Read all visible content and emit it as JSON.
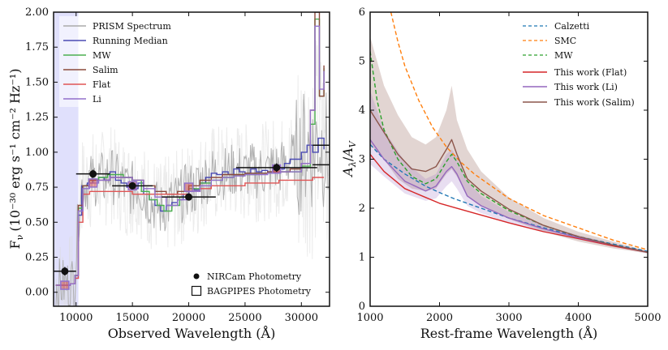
{
  "chart_data": [
    {
      "type": "line",
      "title": "",
      "xlabel": "Observed Wavelength (Å)",
      "ylabel": "F_ν (10⁻³⁰ erg s⁻¹ cm⁻² Hz⁻¹)",
      "ylabel_main": "F",
      "ylabel_sub": "ν",
      "ylabel_units": "(10⁻³⁰ erg s⁻¹ cm⁻² Hz⁻¹)",
      "xlim": [
        8000,
        32500
      ],
      "ylim": [
        -0.1,
        2.0
      ],
      "xticks": [
        10000,
        15000,
        20000,
        25000,
        30000
      ],
      "xtick_labels": [
        "10000",
        "15000",
        "20000",
        "25000",
        "30000"
      ],
      "yticks": [
        0.0,
        0.25,
        0.5,
        0.75,
        1.0,
        1.25,
        1.5,
        1.75,
        2.0
      ],
      "ytick_labels": [
        "0.00",
        "0.25",
        "0.50",
        "0.75",
        "1.00",
        "1.25",
        "1.50",
        "1.75",
        "2.00"
      ],
      "shaded_region": {
        "x": [
          8000,
          10200
        ],
        "color": "#d8d8fb"
      },
      "legend": {
        "placement": "top-left",
        "entries": [
          {
            "label": "PRISM Spectrum",
            "color": "#aaaaaa"
          },
          {
            "label": "Running Median",
            "color": "#4b4bb4"
          },
          {
            "label": "MW",
            "color": "#4caf50"
          },
          {
            "label": "Salim",
            "color": "#8b4a3c"
          },
          {
            "label": "Flat",
            "color": "#e05555"
          },
          {
            "label": "Li",
            "color": "#9370cc"
          }
        ]
      },
      "legend2": {
        "placement": "bottom-right",
        "entries": [
          {
            "label": "NIRCam Photometry",
            "marker": "circle"
          },
          {
            "label": "BAGPIPES Photometry",
            "marker": "square"
          }
        ]
      },
      "series": [
        {
          "name": "Running Median",
          "color": "#4b4bb4",
          "x": [
            8200,
            9000,
            9500,
            9900,
            10200,
            10500,
            11000,
            11500,
            12000,
            12500,
            13000,
            13500,
            14000,
            14500,
            15000,
            15500,
            16000,
            16500,
            17000,
            17500,
            18000,
            18500,
            19000,
            19500,
            20000,
            20500,
            21000,
            21500,
            22000,
            22500,
            23000,
            23500,
            24000,
            24500,
            25000,
            25500,
            26000,
            26500,
            27000,
            27500,
            28000,
            28500,
            29000,
            29500,
            30000,
            30500,
            31000,
            31500,
            32000
          ],
          "y": [
            0.05,
            0.05,
            0.06,
            0.1,
            0.55,
            0.76,
            0.78,
            0.8,
            0.82,
            0.8,
            0.86,
            0.8,
            0.78,
            0.75,
            0.74,
            0.78,
            0.7,
            0.66,
            0.62,
            0.58,
            0.62,
            0.64,
            0.66,
            0.7,
            0.74,
            0.73,
            0.78,
            0.82,
            0.85,
            0.84,
            0.86,
            0.84,
            0.88,
            0.86,
            0.85,
            0.88,
            0.86,
            0.87,
            0.86,
            0.9,
            0.88,
            0.92,
            0.95,
            0.95,
            1.0,
            1.05,
            1.0,
            1.1,
            1.02
          ]
        },
        {
          "name": "MW",
          "color": "#4caf50",
          "x": [
            8200,
            9000,
            9500,
            9900,
            10200,
            10600,
            11200,
            12000,
            12800,
            13500,
            14200,
            15000,
            15800,
            16500,
            17200,
            17800,
            18500,
            19200,
            20000,
            21000,
            22000,
            23000,
            24000,
            25000,
            26000,
            27000,
            28000,
            29000,
            30000,
            30800,
            31200,
            31600,
            32000
          ],
          "y": [
            0.05,
            0.05,
            0.06,
            0.12,
            0.6,
            0.76,
            0.8,
            0.82,
            0.84,
            0.84,
            0.82,
            0.8,
            0.72,
            0.66,
            0.62,
            0.58,
            0.62,
            0.68,
            0.74,
            0.78,
            0.8,
            0.82,
            0.84,
            0.84,
            0.85,
            0.85,
            0.86,
            0.86,
            0.9,
            1.2,
            1.95,
            1.4,
            1.6
          ]
        },
        {
          "name": "Salim",
          "color": "#8b4a3c",
          "x": [
            8200,
            9000,
            9500,
            9900,
            10200,
            10600,
            11200,
            12000,
            13000,
            14000,
            15000,
            16000,
            17000,
            18000,
            19000,
            20000,
            21000,
            22000,
            23000,
            24000,
            25000,
            26000,
            27000,
            28000,
            29000,
            30000,
            30800,
            31200,
            31600,
            32000
          ],
          "y": [
            0.05,
            0.05,
            0.06,
            0.12,
            0.62,
            0.76,
            0.8,
            0.8,
            0.82,
            0.82,
            0.8,
            0.76,
            0.72,
            0.7,
            0.72,
            0.76,
            0.8,
            0.82,
            0.84,
            0.84,
            0.85,
            0.85,
            0.86,
            0.86,
            0.88,
            0.92,
            1.3,
            2.0,
            1.4,
            1.62
          ]
        },
        {
          "name": "Flat",
          "color": "#e05555",
          "x": [
            8200,
            9000,
            9500,
            9900,
            10200,
            10600,
            11200,
            12000,
            13000,
            14000,
            15000,
            16000,
            17000,
            18000,
            19000,
            20000,
            21000,
            22000,
            23000,
            24000,
            25000,
            26000,
            27000,
            28000,
            29000,
            30000,
            31000,
            32000
          ],
          "y": [
            0.05,
            0.05,
            0.06,
            0.1,
            0.5,
            0.7,
            0.72,
            0.72,
            0.72,
            0.72,
            0.7,
            0.7,
            0.7,
            0.7,
            0.7,
            0.72,
            0.74,
            0.76,
            0.76,
            0.76,
            0.78,
            0.78,
            0.78,
            0.8,
            0.8,
            0.8,
            0.82,
            0.82
          ]
        },
        {
          "name": "Li",
          "color": "#9370cc",
          "x": [
            8200,
            9000,
            9500,
            9900,
            10200,
            10600,
            11200,
            12000,
            13000,
            14000,
            15000,
            16000,
            17000,
            18000,
            19000,
            20000,
            21000,
            22000,
            23000,
            24000,
            25000,
            26000,
            27000,
            28000,
            29000,
            30000,
            30800,
            31200,
            31600,
            32000
          ],
          "y": [
            0.05,
            0.05,
            0.06,
            0.12,
            0.58,
            0.74,
            0.78,
            0.8,
            0.82,
            0.82,
            0.8,
            0.74,
            0.68,
            0.62,
            0.66,
            0.72,
            0.76,
            0.8,
            0.82,
            0.83,
            0.84,
            0.84,
            0.85,
            0.86,
            0.86,
            0.92,
            1.3,
            1.9,
            1.45,
            1.58
          ]
        }
      ],
      "nircam_photometry": {
        "x": [
          9000,
          11500,
          15000,
          20000,
          27800
        ],
        "y": [
          0.15,
          0.845,
          0.76,
          0.68,
          0.89
        ],
        "xerr": [
          1000,
          1500,
          1800,
          2400,
          3600
        ],
        "yerr": [
          0.03,
          0.03,
          0.025,
          0.025,
          0.03
        ]
      },
      "bagpipes_photometry": {
        "x": [
          9000,
          11500,
          15000,
          20000,
          27800
        ],
        "y": [
          0.05,
          0.78,
          0.76,
          0.75,
          0.88
        ]
      },
      "extra_errorbars": {
        "x": [
          32000,
          32000
        ],
        "y": [
          1.05,
          0.91
        ],
        "xerr": [
          1000,
          1000
        ]
      }
    },
    {
      "type": "line",
      "title": "",
      "xlabel": "Rest-frame Wavelength (Å)",
      "ylabel": "A_λ/A_V",
      "ylabel_main": "A",
      "ylabel_sub": "λ",
      "ylabel_slash": "/",
      "ylabel_sub2": "V",
      "xlim": [
        1000,
        5000
      ],
      "ylim": [
        0,
        6
      ],
      "xticks": [
        1000,
        2000,
        3000,
        4000,
        5000
      ],
      "xtick_labels": [
        "1000",
        "2000",
        "3000",
        "4000",
        "5000"
      ],
      "yticks": [
        0,
        1,
        2,
        3,
        4,
        5,
        6
      ],
      "ytick_labels": [
        "0",
        "1",
        "2",
        "3",
        "4",
        "5",
        "6"
      ],
      "legend": {
        "placement": "top-right",
        "entries": [
          {
            "label": "Calzetti",
            "color": "#1f77b4",
            "style": "dashed"
          },
          {
            "label": "SMC",
            "color": "#ff7f0e",
            "style": "dashed"
          },
          {
            "label": "MW",
            "color": "#2ca02c",
            "style": "dashed"
          },
          {
            "label": "This work (Flat)",
            "color": "#d62728",
            "style": "solid"
          },
          {
            "label": "This work (Li)",
            "color": "#9467bd",
            "style": "solid"
          },
          {
            "label": "This work (Salim)",
            "color": "#8c564b",
            "style": "solid"
          }
        ]
      },
      "series": [
        {
          "name": "Calzetti",
          "color": "#1f77b4",
          "style": "dashed",
          "x": [
            1000,
            1200,
            1500,
            1800,
            2000,
            2200,
            2500,
            3000,
            3500,
            4000,
            4500,
            5000
          ],
          "y": [
            3.3,
            3.0,
            2.7,
            2.45,
            2.32,
            2.2,
            2.05,
            1.8,
            1.6,
            1.42,
            1.27,
            1.12
          ]
        },
        {
          "name": "SMC",
          "color": "#ff7f0e",
          "style": "dashed",
          "x": [
            1300,
            1400,
            1500,
            1700,
            1900,
            2100,
            2300,
            2500,
            3000,
            3500,
            4000,
            4500,
            5000
          ],
          "y": [
            6.0,
            5.4,
            4.9,
            4.2,
            3.65,
            3.25,
            2.95,
            2.7,
            2.2,
            1.85,
            1.6,
            1.35,
            1.15
          ]
        },
        {
          "name": "MW",
          "color": "#2ca02c",
          "style": "dashed",
          "x": [
            1000,
            1100,
            1200,
            1400,
            1600,
            1800,
            1950,
            2100,
            2175,
            2250,
            2400,
            2600,
            3000,
            3500,
            4000,
            4500,
            5000
          ],
          "y": [
            5.2,
            4.2,
            3.6,
            3.0,
            2.65,
            2.5,
            2.6,
            2.95,
            3.1,
            2.95,
            2.55,
            2.3,
            1.95,
            1.65,
            1.42,
            1.25,
            1.1
          ]
        },
        {
          "name": "This work (Flat)",
          "color": "#d62728",
          "style": "solid",
          "x": [
            1000,
            1200,
            1500,
            1800,
            2000,
            2200,
            2500,
            3000,
            3500,
            4000,
            4500,
            5000
          ],
          "y": [
            3.1,
            2.75,
            2.4,
            2.22,
            2.1,
            2.02,
            1.9,
            1.7,
            1.52,
            1.38,
            1.23,
            1.1
          ]
        },
        {
          "name": "This work (Li)",
          "color": "#9467bd",
          "style": "solid",
          "x": [
            1000,
            1200,
            1500,
            1800,
            1950,
            2100,
            2175,
            2250,
            2400,
            2600,
            3000,
            3500,
            4000,
            4500,
            5000
          ],
          "y": [
            3.4,
            3.0,
            2.55,
            2.35,
            2.45,
            2.75,
            2.85,
            2.7,
            2.25,
            2.05,
            1.8,
            1.58,
            1.4,
            1.25,
            1.1
          ]
        },
        {
          "name": "This work (Salim)",
          "color": "#8c564b",
          "style": "solid",
          "x": [
            1000,
            1200,
            1400,
            1600,
            1800,
            1950,
            2100,
            2175,
            2250,
            2400,
            2600,
            3000,
            3500,
            4000,
            4500,
            5000
          ],
          "y": [
            4.0,
            3.55,
            3.1,
            2.8,
            2.75,
            2.85,
            3.2,
            3.4,
            3.1,
            2.6,
            2.35,
            1.98,
            1.65,
            1.42,
            1.25,
            1.1
          ]
        }
      ],
      "bands": [
        {
          "name": "This work (Salim) band",
          "color": "#8c564b",
          "opacity": 0.25,
          "x": [
            1000,
            1200,
            1400,
            1600,
            1800,
            1950,
            2100,
            2175,
            2250,
            2400,
            2600,
            3000,
            3500,
            4000,
            4500,
            5000
          ],
          "lower": [
            3.3,
            3.0,
            2.6,
            2.4,
            2.35,
            2.4,
            2.7,
            2.8,
            2.65,
            2.25,
            2.05,
            1.78,
            1.52,
            1.32,
            1.18,
            1.08
          ],
          "upper": [
            5.5,
            4.5,
            3.9,
            3.45,
            3.3,
            3.45,
            4.0,
            4.5,
            3.8,
            3.2,
            2.75,
            2.22,
            1.8,
            1.52,
            1.32,
            1.13
          ]
        },
        {
          "name": "This work (Li) band",
          "color": "#9467bd",
          "opacity": 0.22,
          "x": [
            1000,
            1200,
            1500,
            1800,
            1950,
            2100,
            2175,
            2250,
            2400,
            2600,
            3000,
            3500,
            4000,
            4500,
            5000
          ],
          "lower": [
            2.9,
            2.65,
            2.3,
            2.15,
            2.2,
            2.45,
            2.55,
            2.4,
            2.05,
            1.9,
            1.7,
            1.52,
            1.36,
            1.22,
            1.08
          ],
          "upper": [
            4.4,
            3.6,
            2.95,
            2.6,
            2.7,
            3.1,
            3.2,
            3.05,
            2.55,
            2.25,
            1.92,
            1.65,
            1.45,
            1.28,
            1.12
          ]
        }
      ]
    }
  ]
}
